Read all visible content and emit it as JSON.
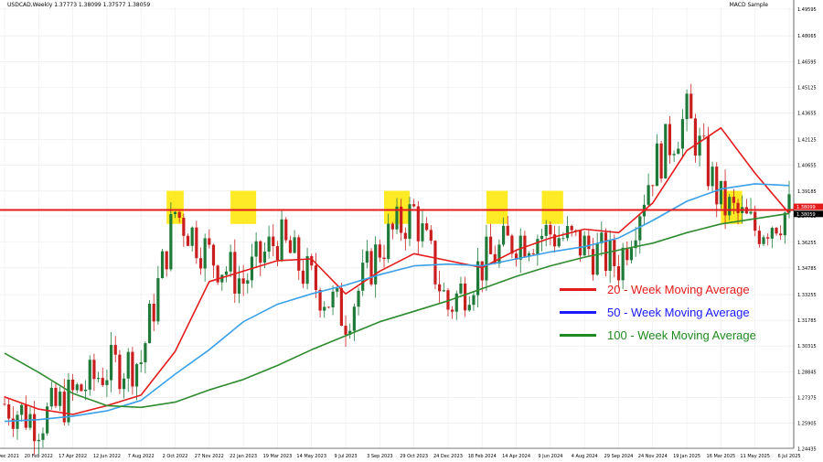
{
  "header": {
    "symbol_info": "USDCAD,Weekly  1.37773 1.38099 1.37577 1.38059",
    "indicator_name": "MACD Sample"
  },
  "legend": [
    {
      "label": "20 - Week Moving Average",
      "color": "#e31b1b"
    },
    {
      "label": "50 - Week Moving Average",
      "color": "#1a1aff"
    },
    {
      "label": "100 - Week Moving Average",
      "color": "#1f8a1f"
    }
  ],
  "colors": {
    "up_candle": "#1f7a3a",
    "down_candle": "#c81e1e",
    "ma20": "#e31b1b",
    "ma50": "#3aa0e8",
    "ma100": "#2e8b2e",
    "resistance": "#e31b1b",
    "highlight": "#ffe600",
    "price_tag": "#e31b1b"
  },
  "chart_data": {
    "type": "line",
    "title": "USDCAD,Weekly",
    "ylim": [
      1.2446,
      1.497
    ],
    "y_ticks": [
      "1.49595",
      "1.48065",
      "1.46595",
      "1.45125",
      "1.43655",
      "1.42125",
      "1.40655",
      "1.39185",
      "1.37755",
      "1.36255",
      "1.34785",
      "1.33255",
      "1.31785",
      "1.30315",
      "1.28845",
      "1.27375",
      "1.25905",
      "1.24435"
    ],
    "x_ticks": [
      "26 Dec 2021",
      "20 Feb 2022",
      "17 Apr 2022",
      "12 Jun 2022",
      "7 Aug 2022",
      "2 Oct 2022",
      "27 Nov 2022",
      "22 Jan 2023",
      "19 Mar 2023",
      "14 May 2023",
      "9 Jul 2023",
      "3 Sep 2023",
      "29 Oct 2023",
      "24 Dec 2023",
      "18 Feb 2024",
      "14 Apr 2024",
      "9 Jun 2024",
      "4 Aug 2024",
      "29 Sep 2024",
      "24 Nov 2024",
      "19 Jan 2025",
      "16 Mar 2025",
      "11 May 2025",
      "6 Jul 2025"
    ],
    "price_labels": [
      "1.38099",
      "1.38059"
    ],
    "resistance_level": 1.381,
    "highlight_zones": [
      {
        "from": "18 Sep 2022",
        "to": "16 Oct 2022",
        "low": 1.373,
        "high": 1.392
      },
      {
        "from": "1 Jan 2023",
        "to": "12 Feb 2023",
        "low": 1.373,
        "high": 1.392
      },
      {
        "from": "10 Sep 2023",
        "to": "22 Oct 2023",
        "low": 1.373,
        "high": 1.392
      },
      {
        "from": "25 Feb 2024",
        "to": "31 Mar 2024",
        "low": 1.373,
        "high": 1.392
      },
      {
        "from": "26 May 2024",
        "to": "30 Jun 2024",
        "low": 1.373,
        "high": 1.392
      },
      {
        "from": "16 Mar 2025",
        "to": "20 Apr 2025",
        "low": 1.373,
        "high": 1.392
      }
    ],
    "series": [
      {
        "name": "20 - Week Moving Average",
        "x": [
          "26 Dec 2021",
          "20 Feb 2022",
          "17 Apr 2022",
          "12 Jun 2022",
          "7 Aug 2022",
          "2 Oct 2022",
          "27 Nov 2022",
          "22 Jan 2023",
          "19 Mar 2023",
          "14 May 2023",
          "9 Jul 2023",
          "3 Sep 2023",
          "29 Oct 2023",
          "24 Dec 2023",
          "18 Feb 2024",
          "14 Apr 2024",
          "9 Jun 2024",
          "4 Aug 2024",
          "29 Sep 2024",
          "24 Nov 2024",
          "19 Jan 2025",
          "16 Mar 2025",
          "11 May 2025",
          "6 Jul 2025"
        ],
        "values": [
          1.274,
          1.267,
          1.264,
          1.269,
          1.275,
          1.3,
          1.34,
          1.346,
          1.352,
          1.353,
          1.333,
          1.346,
          1.356,
          1.352,
          1.348,
          1.358,
          1.365,
          1.37,
          1.368,
          1.385,
          1.415,
          1.428,
          1.402,
          1.379
        ]
      },
      {
        "name": "50 - Week Moving Average",
        "x": [
          "26 Dec 2021",
          "20 Feb 2022",
          "17 Apr 2022",
          "12 Jun 2022",
          "7 Aug 2022",
          "2 Oct 2022",
          "27 Nov 2022",
          "22 Jan 2023",
          "19 Mar 2023",
          "14 May 2023",
          "9 Jul 2023",
          "3 Sep 2023",
          "29 Oct 2023",
          "24 Dec 2023",
          "18 Feb 2024",
          "14 Apr 2024",
          "9 Jun 2024",
          "4 Aug 2024",
          "29 Sep 2024",
          "24 Nov 2024",
          "19 Jan 2025",
          "16 Mar 2025",
          "11 May 2025",
          "6 Jul 2025"
        ],
        "values": [
          1.26,
          1.261,
          1.263,
          1.266,
          1.272,
          1.287,
          1.301,
          1.317,
          1.327,
          1.333,
          1.338,
          1.344,
          1.349,
          1.35,
          1.349,
          1.353,
          1.357,
          1.36,
          1.365,
          1.375,
          1.386,
          1.393,
          1.396,
          1.395
        ]
      },
      {
        "name": "100 - Week Moving Average",
        "x": [
          "26 Dec 2021",
          "20 Feb 2022",
          "17 Apr 2022",
          "12 Jun 2022",
          "7 Aug 2022",
          "2 Oct 2022",
          "27 Nov 2022",
          "22 Jan 2023",
          "19 Mar 2023",
          "14 May 2023",
          "9 Jul 2023",
          "3 Sep 2023",
          "29 Oct 2023",
          "24 Dec 2023",
          "18 Feb 2024",
          "14 Apr 2024",
          "9 Jun 2024",
          "4 Aug 2024",
          "29 Sep 2024",
          "24 Nov 2024",
          "19 Jan 2025",
          "16 Mar 2025",
          "11 May 2025",
          "6 Jul 2025"
        ],
        "values": [
          1.299,
          1.288,
          1.276,
          1.269,
          1.268,
          1.271,
          1.278,
          1.284,
          1.292,
          1.301,
          1.309,
          1.317,
          1.323,
          1.329,
          1.336,
          1.343,
          1.349,
          1.354,
          1.358,
          1.362,
          1.368,
          1.373,
          1.376,
          1.379
        ]
      }
    ],
    "candles": {
      "x": [
        "26 Dec 2021",
        "20 Feb 2022",
        "17 Apr 2022",
        "12 Jun 2022",
        "7 Aug 2022",
        "2 Oct 2022",
        "27 Nov 2022",
        "22 Jan 2023",
        "19 Mar 2023",
        "14 May 2023",
        "9 Jul 2023",
        "3 Sep 2023",
        "29 Oct 2023",
        "24 Dec 2023",
        "18 Feb 2024",
        "14 Apr 2024",
        "9 Jun 2024",
        "4 Aug 2024",
        "29 Sep 2024",
        "24 Nov 2024",
        "19 Jan 2025",
        "16 Mar 2025",
        "11 May 2025",
        "6 Jul 2025"
      ],
      "close": [
        1.27,
        1.26,
        1.275,
        1.29,
        1.295,
        1.38,
        1.355,
        1.34,
        1.365,
        1.34,
        1.32,
        1.36,
        1.38,
        1.325,
        1.35,
        1.365,
        1.368,
        1.36,
        1.35,
        1.405,
        1.435,
        1.385,
        1.37,
        1.3805
      ]
    }
  }
}
